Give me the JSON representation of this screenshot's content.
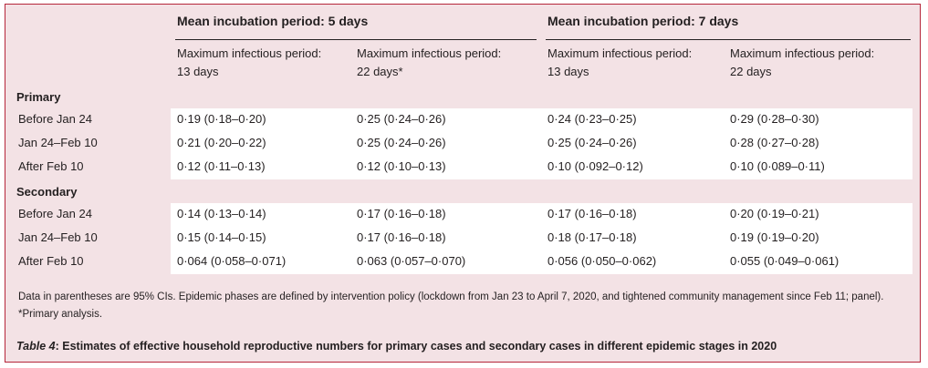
{
  "table": {
    "group_headers": [
      "Mean incubation period: 5 days",
      "Mean incubation period: 7 days"
    ],
    "column_headers": [
      [
        "Maximum infectious period:",
        "13 days"
      ],
      [
        "Maximum infectious period:",
        "22 days*"
      ],
      [
        "Maximum infectious period:",
        "13 days"
      ],
      [
        "Maximum infectious period:",
        "22 days"
      ]
    ],
    "sections": [
      {
        "label": "Primary",
        "rows": [
          {
            "label": "Before Jan 24",
            "values": [
              "0·19 (0·18–0·20)",
              "0·25 (0·24–0·26)",
              "0·24 (0·23–0·25)",
              "0·29 (0·28–0·30)"
            ]
          },
          {
            "label": "Jan 24–Feb 10",
            "values": [
              "0·21 (0·20–0·22)",
              "0·25 (0·24–0·26)",
              "0·25 (0·24–0·26)",
              "0·28 (0·27–0·28)"
            ]
          },
          {
            "label": "After Feb 10",
            "values": [
              "0·12 (0·11–0·13)",
              "0·12 (0·10–0·13)",
              "0·10 (0·092–0·12)",
              "0·10 (0·089–0·11)"
            ]
          }
        ]
      },
      {
        "label": "Secondary",
        "rows": [
          {
            "label": "Before Jan 24",
            "values": [
              "0·14 (0·13–0·14)",
              "0·17 (0·16–0·18)",
              "0·17 (0·16–0·18)",
              "0·20 (0·19–0·21)"
            ]
          },
          {
            "label": "Jan 24–Feb 10",
            "values": [
              "0·15 (0·14–0·15)",
              "0·17 (0·16–0·18)",
              "0·18 (0·17–0·18)",
              "0·19 (0·19–0·20)"
            ]
          },
          {
            "label": "After Feb 10",
            "values": [
              "0·064 (0·058–0·071)",
              "0·063 (0·057–0·070)",
              "0·056 (0·050–0·062)",
              "0·055 (0·049–0·061)"
            ]
          }
        ]
      }
    ],
    "footnote": "Data in parentheses are 95% CIs. Epidemic phases are defined by intervention policy (lockdown from Jan 23 to April 7, 2020, and tightened community management since Feb 11; panel). *Primary analysis.",
    "caption_label": "Table 4",
    "caption_text": ": Estimates of effective household reproductive numbers for primary cases and secondary cases in different epidemic stages in 2020"
  },
  "colors": {
    "border": "#b5263a",
    "background": "#f3e2e5",
    "band": "#ffffff",
    "text": "#231f20"
  }
}
